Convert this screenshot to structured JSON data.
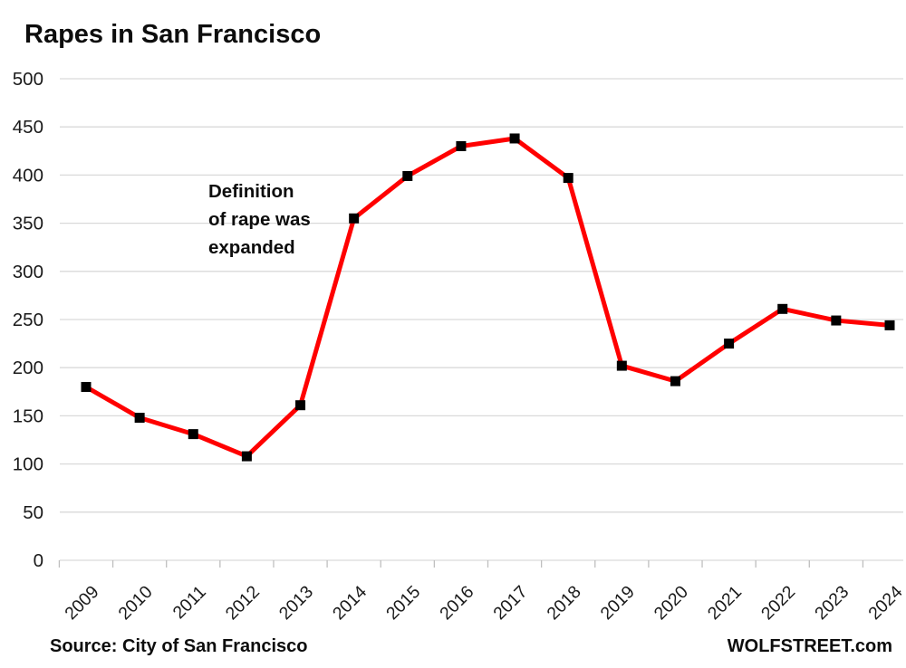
{
  "page": {
    "title": "Rapes in San Francisco",
    "annotation_lines": [
      "Definition",
      "of rape was",
      "expanded"
    ],
    "source": "Source: City of San Francisco",
    "branding": "WOLFSTREET.com"
  },
  "colors": {
    "line": "#FF0000",
    "marker": "#000000",
    "gridline": "#D9D9D9",
    "tick": "#BFBFBF",
    "axis_text": "#1a1a1a"
  },
  "chart_data": {
    "type": "line",
    "title": "Rapes in San Francisco",
    "categories": [
      "2009",
      "2010",
      "2011",
      "2012",
      "2013",
      "2014",
      "2015",
      "2016",
      "2017",
      "2018",
      "2019",
      "2020",
      "2021",
      "2022",
      "2023",
      "2024"
    ],
    "values": [
      180,
      148,
      131,
      108,
      161,
      355,
      399,
      430,
      438,
      397,
      202,
      186,
      225,
      261,
      249,
      244
    ],
    "xlabel": "",
    "ylabel": "",
    "ylim": [
      0,
      500
    ],
    "ytick_step": 50,
    "grid": "horizontal-only",
    "legend": "none",
    "line_style": "thick red with black square markers",
    "x_label_rotation_deg": 45,
    "annotations": [
      {
        "text": "Definition of rape was expanded",
        "near_category": "2013"
      }
    ]
  }
}
